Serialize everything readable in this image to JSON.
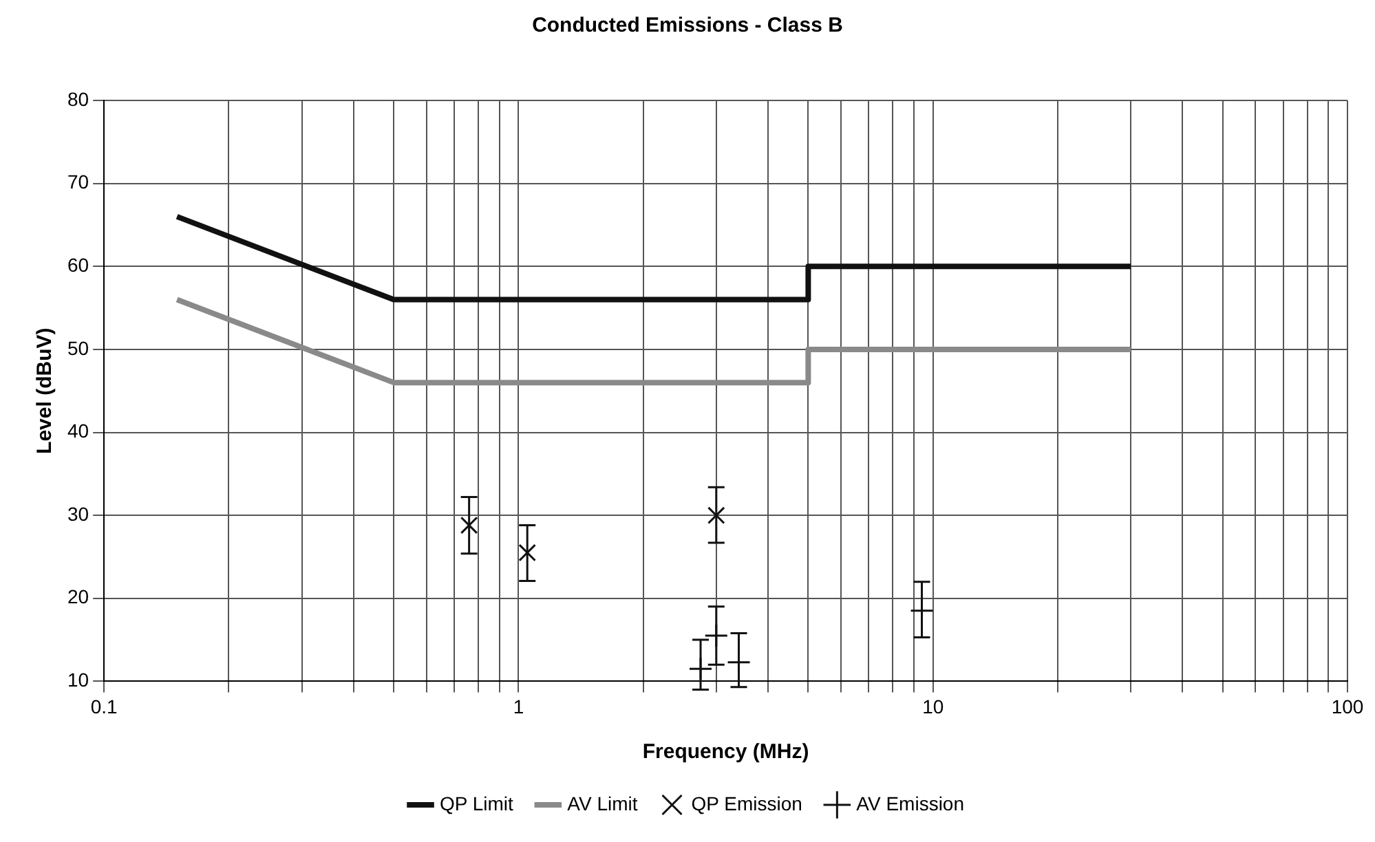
{
  "chart_data": {
    "type": "line",
    "title": "Conducted Emissions - Class B",
    "xlabel": "Frequency (MHz)",
    "ylabel": "Level (dBuV)",
    "log": "x",
    "grid": true,
    "legend": "bottom",
    "xlim": [
      0.1,
      100
    ],
    "ylim": [
      10,
      80
    ],
    "yticks": [
      10,
      20,
      30,
      40,
      50,
      60,
      70,
      80
    ],
    "xticks": [
      0.1,
      {
        "value": 0.2,
        "label": null
      },
      {
        "value": 0.3,
        "label": null
      },
      {
        "value": 0.4,
        "label": null
      },
      {
        "value": 0.5,
        "label": null
      },
      {
        "value": 0.6,
        "label": null
      },
      {
        "value": 0.7,
        "label": null
      },
      {
        "value": 0.8,
        "label": null
      },
      {
        "value": 0.9,
        "label": null
      },
      1,
      {
        "value": 2,
        "label": null
      },
      {
        "value": 3,
        "label": null
      },
      {
        "value": 4,
        "label": null
      },
      {
        "value": 5,
        "label": null
      },
      {
        "value": 6,
        "label": null
      },
      {
        "value": 7,
        "label": null
      },
      {
        "value": 8,
        "label": null
      },
      {
        "value": 9,
        "label": null
      },
      10,
      {
        "value": 20,
        "label": null
      },
      {
        "value": 30,
        "label": null
      },
      {
        "value": 40,
        "label": null
      },
      {
        "value": 50,
        "label": null
      },
      {
        "value": 60,
        "label": null
      },
      {
        "value": 70,
        "label": null
      },
      {
        "value": 80,
        "label": null
      },
      {
        "value": 90,
        "label": null
      },
      100
    ],
    "series": [
      {
        "name": "QP Limit",
        "type": "line",
        "color": "#111111",
        "marker": "none",
        "x": [
          0.15,
          0.5,
          5,
          5,
          30
        ],
        "values": [
          66,
          56,
          56,
          60,
          60
        ]
      },
      {
        "name": "AV Limit",
        "type": "line",
        "color": "#8a8a8a",
        "marker": "none",
        "x": [
          0.15,
          0.5,
          5,
          5,
          30
        ],
        "values": [
          56,
          46,
          46,
          50,
          50
        ]
      },
      {
        "name": "QP Emission",
        "type": "scatter",
        "color": "#111111",
        "marker": "cross",
        "x": [
          0.76,
          1.05,
          3.0
        ],
        "values": [
          28.8,
          25.5,
          30
        ],
        "errors": [
          [
            25.4,
            32.2
          ],
          [
            22.1,
            28.8
          ],
          [
            26.7,
            33.4
          ]
        ]
      },
      {
        "name": "AV Emission",
        "type": "scatter",
        "color": "#111111",
        "marker": "plus",
        "x": [
          2.75,
          3.0,
          3.4,
          9.4
        ],
        "values": [
          11.5,
          15.5,
          12.3,
          18.5
        ],
        "errors": [
          [
            9,
            15
          ],
          [
            12,
            19
          ],
          [
            9.3,
            15.8
          ],
          [
            15.3,
            22
          ]
        ]
      }
    ]
  }
}
